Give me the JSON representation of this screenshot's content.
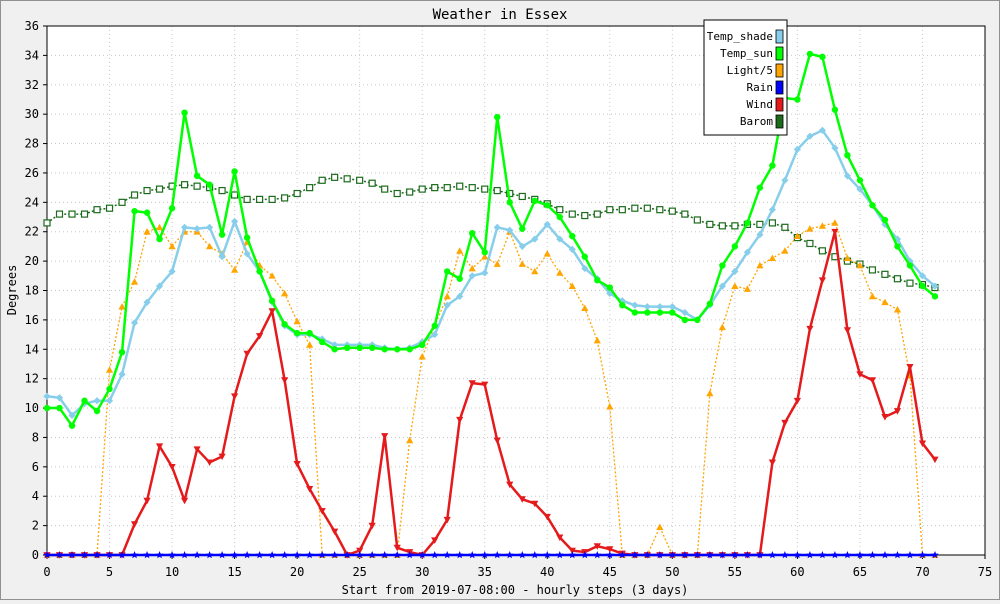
{
  "chart_data": {
    "type": "line",
    "title": "Weather in Essex",
    "xlabel": "Start from 2019-07-08:00 - hourly steps (3 days)",
    "ylabel": "Degrees",
    "xlim": [
      0,
      75
    ],
    "ylim": [
      0,
      36
    ],
    "x_ticks": [
      "0",
      "5",
      "10",
      "15",
      "20",
      "25",
      "30",
      "35",
      "40",
      "45",
      "50",
      "55",
      "60",
      "65",
      "70",
      "75"
    ],
    "y_ticks": [
      "0",
      "2",
      "4",
      "6",
      "8",
      "10",
      "12",
      "14",
      "16",
      "18",
      "20",
      "22",
      "24",
      "26",
      "28",
      "30",
      "32",
      "34",
      "36"
    ],
    "grid": true,
    "legend_position": "top-right",
    "series": [
      {
        "name": "Temp_shade",
        "color": "#87ceeb",
        "marker": "diamond",
        "values": [
          10.8,
          10.7,
          9.5,
          10.3,
          10.5,
          10.5,
          12.3,
          15.8,
          17.2,
          18.3,
          19.3,
          22.3,
          22.2,
          22.3,
          20.3,
          22.7,
          20.5,
          19.3,
          17.2,
          15.6,
          15.0,
          15.0,
          14.7,
          14.3,
          14.3,
          14.3,
          14.3,
          14.1,
          14.0,
          14.1,
          14.5,
          15.0,
          17.0,
          17.6,
          19.0,
          19.2,
          22.3,
          22.1,
          21.0,
          21.5,
          22.5,
          21.5,
          20.8,
          19.5,
          18.8,
          17.8,
          17.3,
          17.0,
          16.9,
          16.9,
          16.9,
          16.5,
          16.0,
          17.0,
          18.3,
          19.3,
          20.6,
          21.8,
          23.5,
          25.5,
          27.6,
          28.5,
          28.9,
          27.7,
          25.8,
          24.9,
          23.8,
          22.5,
          21.5,
          20.0,
          19.0,
          18.3
        ]
      },
      {
        "name": "Temp_sun",
        "color": "#00ff00",
        "marker": "circle",
        "values": [
          10.0,
          10.0,
          8.8,
          10.5,
          9.8,
          11.3,
          13.8,
          23.4,
          23.3,
          21.5,
          23.6,
          30.1,
          25.8,
          25.2,
          21.8,
          26.1,
          21.6,
          19.3,
          17.3,
          15.7,
          15.1,
          15.1,
          14.5,
          14.0,
          14.1,
          14.1,
          14.1,
          14.0,
          14.0,
          14.0,
          14.3,
          15.6,
          19.3,
          18.8,
          21.9,
          20.6,
          29.8,
          24.0,
          22.2,
          24.1,
          23.8,
          23.0,
          21.7,
          20.3,
          18.7,
          18.2,
          17.0,
          16.5,
          16.5,
          16.5,
          16.5,
          16.0,
          16.0,
          17.1,
          19.7,
          21.0,
          22.6,
          25.0,
          26.5,
          31.1,
          31.0,
          34.1,
          33.9,
          30.3,
          27.2,
          25.5,
          23.8,
          22.8,
          21.0,
          19.7,
          18.3,
          17.6
        ]
      },
      {
        "name": "Light/5",
        "color": "#ffa500",
        "marker": "triangle-up",
        "values": [
          0,
          0,
          0,
          0,
          0,
          12.6,
          16.9,
          18.6,
          22.0,
          22.3,
          21.0,
          22.0,
          22.0,
          21.0,
          20.5,
          19.4,
          21.3,
          19.7,
          19.0,
          17.8,
          15.9,
          14.3,
          0,
          0,
          0,
          0,
          0,
          0,
          0,
          7.8,
          13.5,
          15.6,
          17.6,
          20.7,
          19.5,
          20.3,
          19.8,
          22.0,
          19.8,
          19.3,
          20.5,
          19.2,
          18.3,
          16.8,
          14.6,
          10.1,
          0,
          0,
          0,
          1.9,
          0,
          0,
          0,
          11.0,
          15.5,
          18.3,
          18.1,
          19.7,
          20.2,
          20.7,
          21.7,
          22.2,
          22.4,
          22.6,
          20.2,
          19.7,
          17.6,
          17.2,
          16.7,
          12.2,
          0,
          0
        ]
      },
      {
        "name": "Rain",
        "color": "#0000ff",
        "marker": "star",
        "values": [
          0,
          0,
          0,
          0,
          0,
          0,
          0,
          0,
          0,
          0,
          0,
          0,
          0,
          0,
          0,
          0,
          0,
          0,
          0,
          0,
          0,
          0,
          0,
          0,
          0,
          0,
          0,
          0,
          0,
          0,
          0,
          0,
          0,
          0,
          0,
          0,
          0,
          0,
          0,
          0,
          0,
          0,
          0,
          0,
          0,
          0,
          0,
          0,
          0,
          0,
          0,
          0,
          0,
          0,
          0,
          0,
          0,
          0,
          0,
          0,
          0,
          0,
          0,
          0,
          0,
          0,
          0,
          0,
          0,
          0,
          0,
          0
        ]
      },
      {
        "name": "Wind",
        "color": "#e41a1c",
        "marker": "triangle-down",
        "values": [
          0,
          0,
          0,
          0,
          0,
          0,
          0,
          2.1,
          3.7,
          7.4,
          6.0,
          3.7,
          7.2,
          6.3,
          6.7,
          10.8,
          13.7,
          14.9,
          16.6,
          11.9,
          6.2,
          4.5,
          3.0,
          1.6,
          0,
          0.3,
          2.0,
          8.1,
          0.5,
          0.2,
          0,
          1.0,
          2.4,
          9.2,
          11.7,
          11.6,
          7.8,
          4.8,
          3.8,
          3.5,
          2.6,
          1.2,
          0.3,
          0.2,
          0.6,
          0.4,
          0.1,
          0,
          0,
          0,
          0,
          0,
          0,
          0,
          0,
          0,
          0,
          0,
          6.3,
          9.0,
          10.5,
          15.4,
          18.7,
          22.0,
          15.3,
          12.3,
          11.9,
          9.4,
          9.8,
          12.8,
          7.6,
          6.5
        ]
      },
      {
        "name": "Barom",
        "color": "#1c6b1c",
        "marker": "square",
        "values": [
          22.6,
          23.2,
          23.2,
          23.2,
          23.5,
          23.6,
          24.0,
          24.5,
          24.8,
          24.9,
          25.1,
          25.2,
          25.1,
          25.0,
          24.8,
          24.5,
          24.2,
          24.2,
          24.2,
          24.3,
          24.6,
          25.0,
          25.5,
          25.7,
          25.6,
          25.5,
          25.3,
          24.9,
          24.6,
          24.7,
          24.9,
          25.0,
          25.0,
          25.1,
          25.0,
          24.9,
          24.8,
          24.6,
          24.4,
          24.2,
          23.9,
          23.5,
          23.2,
          23.1,
          23.2,
          23.5,
          23.5,
          23.6,
          23.6,
          23.5,
          23.4,
          23.2,
          22.8,
          22.5,
          22.4,
          22.4,
          22.5,
          22.5,
          22.6,
          22.3,
          21.6,
          21.2,
          20.7,
          20.3,
          20.0,
          19.8,
          19.4,
          19.1,
          18.8,
          18.5,
          18.4,
          18.2
        ]
      }
    ]
  }
}
